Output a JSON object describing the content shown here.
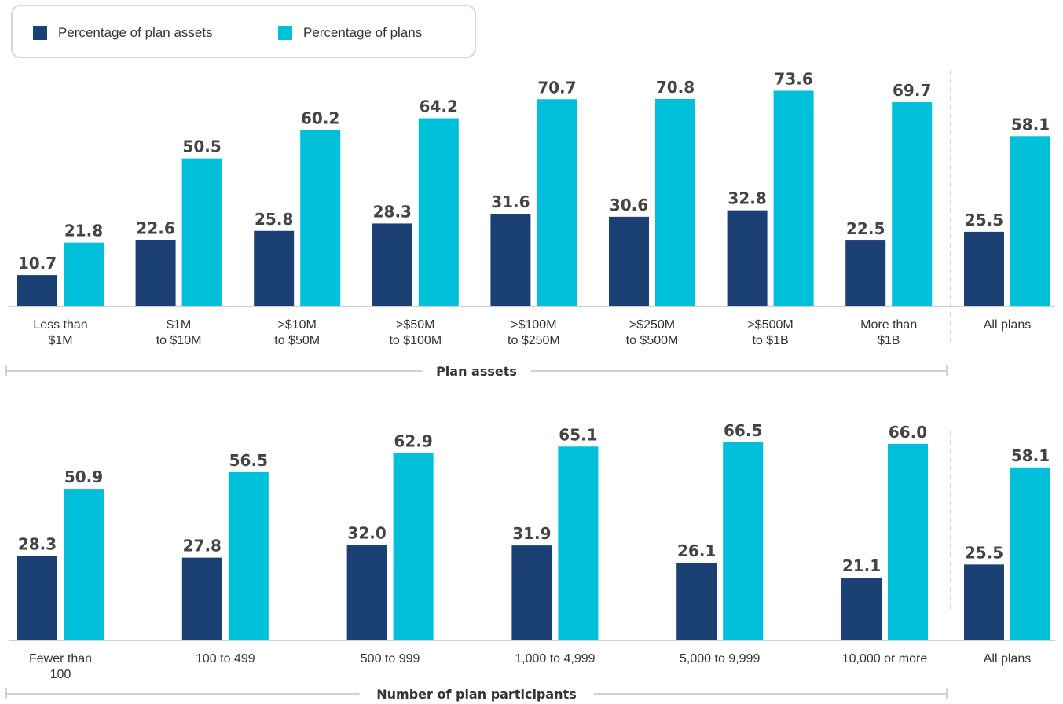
{
  "colors": {
    "plan_assets": "#1b4174",
    "plans": "#00bfd8"
  },
  "legend": {
    "items": [
      {
        "label": "Percentage of plan assets",
        "color": "#1b4174"
      },
      {
        "label": "Percentage of plans",
        "color": "#00bfd8"
      }
    ]
  },
  "chart_data": [
    {
      "type": "bar",
      "xlabel": "Plan assets",
      "legend_position": "top-left",
      "grid": false,
      "categories": [
        "Less than\n$1M",
        "$1M\nto $10M",
        ">$10M\nto $50M",
        ">$50M\nto $100M",
        ">$100M\nto $250M",
        ">$250M\nto $500M",
        ">$500M\nto $1B",
        "More than\n$1B",
        "All plans"
      ],
      "series": [
        {
          "name": "Percentage of plan assets",
          "values": [
            10.7,
            22.6,
            25.8,
            28.3,
            31.6,
            30.6,
            32.8,
            22.5,
            25.5
          ]
        },
        {
          "name": "Percentage of plans",
          "values": [
            21.8,
            50.5,
            60.2,
            64.2,
            70.7,
            70.8,
            73.6,
            69.7,
            58.1
          ]
        }
      ],
      "value_labels": [
        [
          "10.7",
          "22.6",
          "25.8",
          "28.3",
          "31.6",
          "30.6",
          "32.8",
          "22.5",
          "25.5"
        ],
        [
          "21.8",
          "50.5",
          "60.2",
          "64.2",
          "70.7",
          "70.8",
          "73.6",
          "69.7",
          "58.1"
        ]
      ]
    },
    {
      "type": "bar",
      "xlabel": "Number of plan participants",
      "grid": false,
      "categories": [
        "Fewer than\n100",
        "100 to 499",
        "500 to 999",
        "1,000 to 4,999",
        "5,000 to 9,999",
        "10,000 or more",
        "All plans"
      ],
      "series": [
        {
          "name": "Percentage of plan assets",
          "values": [
            28.3,
            27.8,
            32.0,
            31.9,
            26.1,
            21.1,
            25.5
          ]
        },
        {
          "name": "Percentage of plans",
          "values": [
            50.9,
            56.5,
            62.9,
            65.1,
            66.5,
            66.0,
            58.1
          ]
        }
      ],
      "value_labels": [
        [
          "28.3",
          "27.8",
          "32.0",
          "31.9",
          "26.1",
          "21.1",
          "25.5"
        ],
        [
          "50.9",
          "56.5",
          "62.9",
          "65.1",
          "66.5",
          "66.0",
          "58.1"
        ]
      ]
    }
  ]
}
